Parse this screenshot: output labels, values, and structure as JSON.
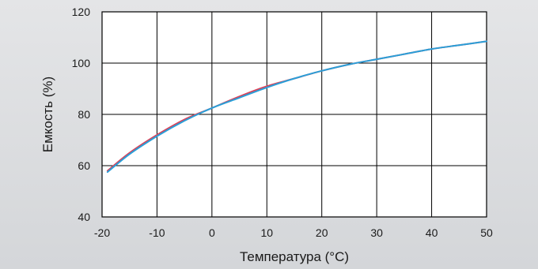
{
  "chart_data": {
    "type": "line",
    "title": "",
    "xlabel": "Температура (°C)",
    "ylabel": "Емкость (%)",
    "xlim": [
      -20,
      50
    ],
    "ylim": [
      40,
      120
    ],
    "x_ticks": [
      -20,
      -10,
      0,
      10,
      20,
      30,
      40,
      50
    ],
    "x_tick_labels": [
      "-20",
      "-10",
      "0",
      "10",
      "20",
      "30",
      "40",
      "50"
    ],
    "y_ticks": [
      40,
      60,
      80,
      100,
      120
    ],
    "y_tick_labels": [
      "40",
      "60",
      "80",
      "100",
      "120"
    ],
    "grid": true,
    "legend": "none",
    "series": [
      {
        "color": "#d9435a",
        "x": [
          -19,
          -15,
          -10,
          -5,
          0,
          5,
          10,
          15,
          20,
          25,
          30,
          35,
          40,
          45,
          50
        ],
        "y": [
          58,
          65,
          72,
          78,
          82.5,
          87,
          91,
          94,
          97,
          99.5,
          101.5,
          103.5,
          105.5,
          107,
          108.5
        ]
      },
      {
        "color": "#2a9fd8",
        "x": [
          -19,
          -15,
          -10,
          -5,
          0,
          5,
          10,
          15,
          20,
          25,
          30,
          35,
          40,
          45,
          50
        ],
        "y": [
          57.5,
          64.5,
          71.5,
          77.5,
          82.5,
          86.5,
          90.5,
          94,
          97,
          99.5,
          101.5,
          103.5,
          105.5,
          107,
          108.5
        ]
      }
    ]
  }
}
